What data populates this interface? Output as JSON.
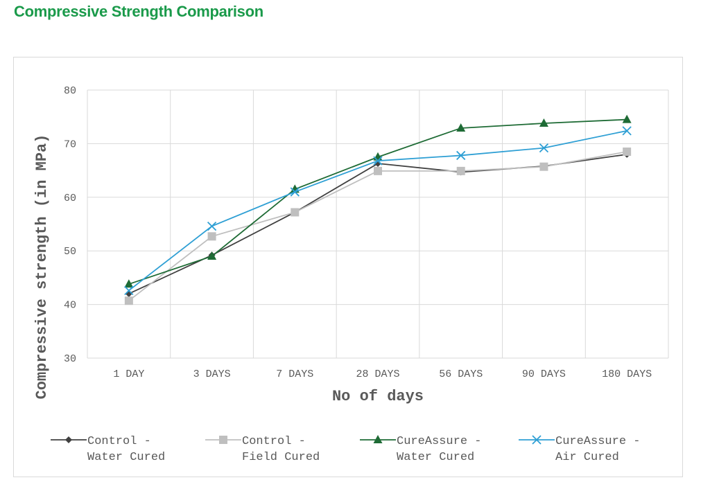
{
  "page": {
    "title": "Compressive Strength Comparison"
  },
  "chart_data": {
    "type": "line",
    "title": "",
    "xlabel": "No of days",
    "ylabel": "Compressive strength (in MPa)",
    "categories": [
      "1 DAY",
      "3 DAYS",
      "7 DAYS",
      "28 DAYS",
      "56 DAYS",
      "90 DAYS",
      "180 DAYS"
    ],
    "ylim": [
      30,
      80
    ],
    "yticks": [
      "30",
      "40",
      "50",
      "60",
      "70",
      "80"
    ],
    "grid": true,
    "legend_position": "bottom",
    "series": [
      {
        "name": "Control - Water Cured",
        "legend_lines": [
          "Control -",
          "Water Cured"
        ],
        "color": "#404040",
        "marker": "diamond",
        "values": [
          42,
          49.2,
          57.2,
          66.3,
          64.7,
          65.8,
          68
        ]
      },
      {
        "name": "Control - Field Cured",
        "legend_lines": [
          "Control -",
          "Field Cured"
        ],
        "color": "#bfbfbf",
        "marker": "square",
        "values": [
          40.7,
          52.7,
          57.2,
          64.9,
          64.9,
          65.7,
          68.5
        ]
      },
      {
        "name": "CureAssure - Water Cured",
        "legend_lines": [
          "CureAssure -",
          "Water Cured"
        ],
        "color": "#1e6b35",
        "marker": "triangle",
        "values": [
          43.8,
          49,
          61.5,
          67.5,
          72.9,
          73.8,
          74.5
        ]
      },
      {
        "name": "CureAssure - Air Cured",
        "legend_lines": [
          "CureAssure -",
          "Air Cured"
        ],
        "color": "#2e9fd4",
        "marker": "x",
        "values": [
          42.6,
          54.6,
          61,
          66.8,
          67.8,
          69.2,
          72.4
        ]
      }
    ]
  }
}
